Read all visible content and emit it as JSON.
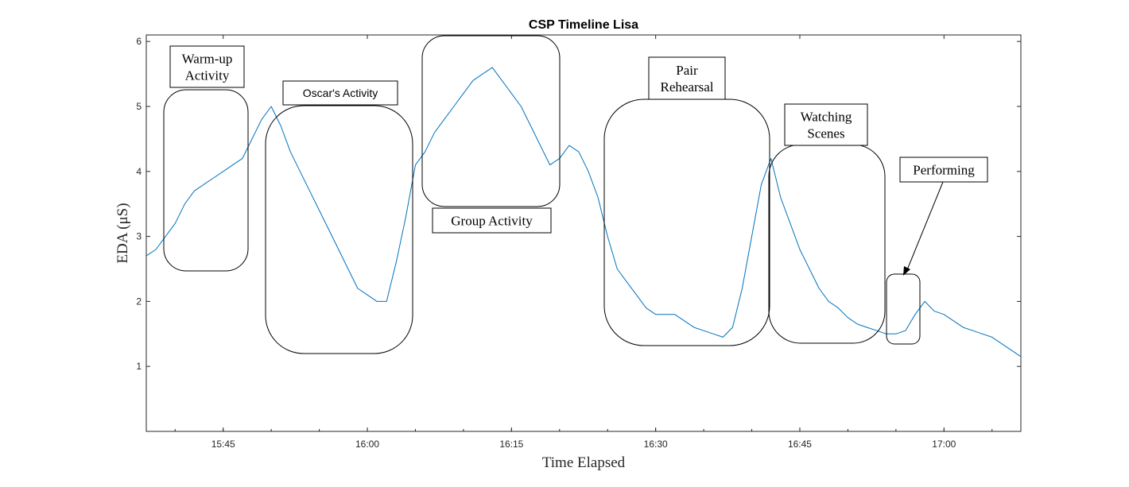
{
  "chart_data": {
    "type": "line",
    "title": "CSP Timeline Lisa",
    "xlabel": "Time Elapsed",
    "ylabel": "EDA (μS)",
    "xlim": [
      "15:37",
      "17:08"
    ],
    "ylim": [
      0,
      6.1
    ],
    "x_ticks": [
      "15:45",
      "16:00",
      "16:15",
      "16:30",
      "16:45",
      "17:00"
    ],
    "y_ticks": [
      1,
      2,
      3,
      4,
      5,
      6
    ],
    "line_color": "#0072BD",
    "series": [
      {
        "x": [
          "15:37",
          "15:38",
          "15:39",
          "15:40",
          "15:41",
          "15:42",
          "15:43",
          "15:44",
          "15:45",
          "15:46",
          "15:47",
          "15:48",
          "15:49",
          "15:50",
          "15:51",
          "15:52",
          "15:53",
          "15:54",
          "15:55",
          "15:56",
          "15:57",
          "15:58",
          "15:59",
          "16:00",
          "16:01",
          "16:02",
          "16:03",
          "16:04",
          "16:05",
          "16:06",
          "16:07",
          "16:08",
          "16:09",
          "16:10",
          "16:11",
          "16:12",
          "16:13",
          "16:14",
          "16:15",
          "16:16",
          "16:17",
          "16:18",
          "16:19",
          "16:20",
          "16:21",
          "16:22",
          "16:23",
          "16:24",
          "16:25",
          "16:26",
          "16:27",
          "16:28",
          "16:29",
          "16:30",
          "16:31",
          "16:32",
          "16:33",
          "16:34",
          "16:35",
          "16:36",
          "16:37",
          "16:38",
          "16:39",
          "16:40",
          "16:41",
          "16:42",
          "16:43",
          "16:44",
          "16:45",
          "16:46",
          "16:47",
          "16:48",
          "16:49",
          "16:50",
          "16:51",
          "16:52",
          "16:53",
          "16:54",
          "16:55",
          "16:56",
          "16:57",
          "16:58",
          "16:59",
          "17:00",
          "17:01",
          "17:02",
          "17:03",
          "17:04",
          "17:05",
          "17:06",
          "17:07",
          "17:08"
        ],
        "values": [
          2.7,
          2.8,
          3.0,
          3.2,
          3.5,
          3.7,
          3.8,
          3.9,
          4.0,
          4.1,
          4.2,
          4.5,
          4.8,
          5.0,
          4.7,
          4.3,
          4.0,
          3.7,
          3.4,
          3.1,
          2.8,
          2.5,
          2.2,
          2.1,
          2.0,
          2.0,
          2.6,
          3.3,
          4.1,
          4.3,
          4.6,
          4.8,
          5.0,
          5.2,
          5.4,
          5.5,
          5.6,
          5.4,
          5.2,
          5.0,
          4.7,
          4.4,
          4.1,
          4.2,
          4.4,
          4.3,
          4.0,
          3.6,
          3.0,
          2.5,
          2.3,
          2.1,
          1.9,
          1.8,
          1.8,
          1.8,
          1.7,
          1.6,
          1.55,
          1.5,
          1.45,
          1.6,
          2.2,
          3.0,
          3.8,
          4.2,
          3.6,
          3.2,
          2.8,
          2.5,
          2.2,
          2.0,
          1.9,
          1.75,
          1.65,
          1.6,
          1.55,
          1.5,
          1.5,
          1.55,
          1.8,
          2.0,
          1.85,
          1.8,
          1.7,
          1.6,
          1.55,
          1.5,
          1.45,
          1.35,
          1.25,
          1.15
        ]
      }
    ],
    "annotations": [
      {
        "lines": [
          "Warm-up",
          "Activity"
        ]
      },
      {
        "lines": [
          "Oscar's Activity"
        ]
      },
      {
        "lines": [
          "Group Activity"
        ]
      },
      {
        "lines": [
          "Pair",
          "Rehearsal"
        ]
      },
      {
        "lines": [
          "Watching",
          "Scenes"
        ]
      },
      {
        "lines": [
          "Performing"
        ]
      }
    ],
    "grid": false,
    "legend": "none"
  }
}
